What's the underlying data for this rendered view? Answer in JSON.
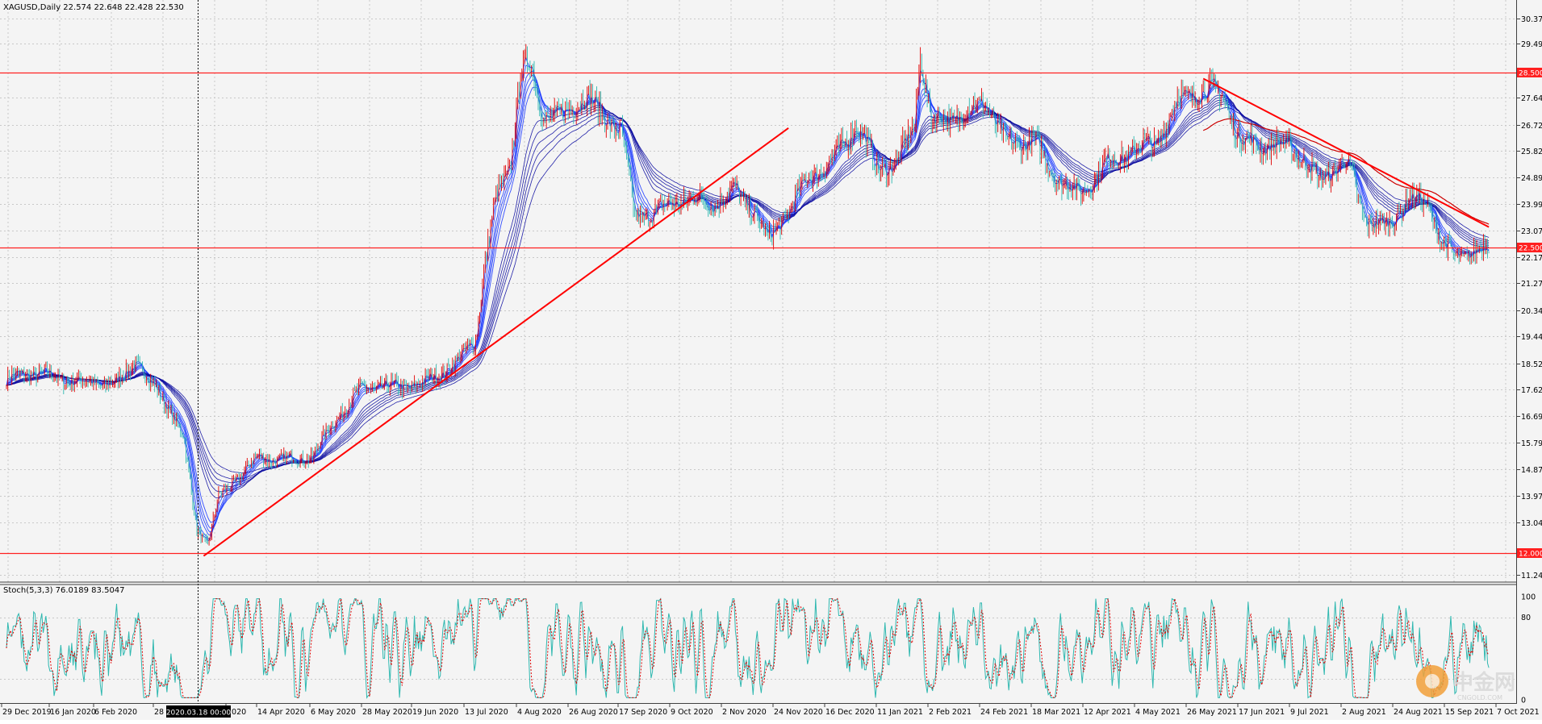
{
  "chart_data": {
    "type": "line",
    "symbol_info": "XAGUSD,Daily  22.574 22.648 22.428 22.530",
    "price_axis": {
      "ylim": [
        11.0,
        31.0
      ],
      "ticks": [
        "30.370",
        "29.495",
        "28.500",
        "27.645",
        "26.720",
        "25.820",
        "24.895",
        "23.995",
        "23.070",
        "22.500",
        "22.170",
        "21.270",
        "20.345",
        "19.445",
        "18.520",
        "17.620",
        "16.695",
        "15.795",
        "14.870",
        "13.970",
        "13.045",
        "12.000",
        "11.245"
      ],
      "highlighted_levels": [
        "28.500",
        "22.500",
        "12.000"
      ]
    },
    "horizontal_levels": [
      28.5,
      22.5,
      12.0
    ],
    "trendlines": [
      {
        "from": {
          "bar": 145,
          "price": 11.9
        },
        "to": {
          "bar": 575,
          "price": 26.6
        }
      },
      {
        "from": {
          "bar": 880,
          "price": 28.3
        },
        "to": {
          "bar": 1090,
          "price": 23.2
        }
      }
    ],
    "price_path": [
      {
        "bar": 0,
        "price": 18.0
      },
      {
        "bar": 20,
        "price": 18.2
      },
      {
        "bar": 50,
        "price": 17.9
      },
      {
        "bar": 80,
        "price": 17.8
      },
      {
        "bar": 95,
        "price": 18.6
      },
      {
        "bar": 105,
        "price": 17.9
      },
      {
        "bar": 118,
        "price": 17.1
      },
      {
        "bar": 130,
        "price": 16.0
      },
      {
        "bar": 140,
        "price": 12.8
      },
      {
        "bar": 148,
        "price": 12.3
      },
      {
        "bar": 156,
        "price": 13.9
      },
      {
        "bar": 170,
        "price": 14.6
      },
      {
        "bar": 185,
        "price": 15.3
      },
      {
        "bar": 205,
        "price": 15.2
      },
      {
        "bar": 225,
        "price": 15.3
      },
      {
        "bar": 240,
        "price": 16.5
      },
      {
        "bar": 262,
        "price": 17.7
      },
      {
        "bar": 285,
        "price": 17.7
      },
      {
        "bar": 305,
        "price": 17.8
      },
      {
        "bar": 330,
        "price": 18.5
      },
      {
        "bar": 345,
        "price": 19.4
      },
      {
        "bar": 352,
        "price": 22.0
      },
      {
        "bar": 360,
        "price": 24.2
      },
      {
        "bar": 370,
        "price": 25.3
      },
      {
        "bar": 378,
        "price": 28.5
      },
      {
        "bar": 385,
        "price": 28.8
      },
      {
        "bar": 395,
        "price": 27.0
      },
      {
        "bar": 410,
        "price": 27.0
      },
      {
        "bar": 425,
        "price": 27.8
      },
      {
        "bar": 440,
        "price": 26.9
      },
      {
        "bar": 452,
        "price": 26.6
      },
      {
        "bar": 462,
        "price": 23.5
      },
      {
        "bar": 480,
        "price": 23.8
      },
      {
        "bar": 500,
        "price": 24.2
      },
      {
        "bar": 520,
        "price": 24.0
      },
      {
        "bar": 535,
        "price": 24.5
      },
      {
        "bar": 550,
        "price": 23.7
      },
      {
        "bar": 560,
        "price": 22.7
      },
      {
        "bar": 575,
        "price": 23.8
      },
      {
        "bar": 590,
        "price": 24.9
      },
      {
        "bar": 610,
        "price": 25.6
      },
      {
        "bar": 625,
        "price": 26.8
      },
      {
        "bar": 640,
        "price": 25.2
      },
      {
        "bar": 655,
        "price": 25.4
      },
      {
        "bar": 668,
        "price": 26.8
      },
      {
        "bar": 672,
        "price": 29.2
      },
      {
        "bar": 680,
        "price": 26.8
      },
      {
        "bar": 700,
        "price": 27.0
      },
      {
        "bar": 720,
        "price": 27.5
      },
      {
        "bar": 735,
        "price": 26.0
      },
      {
        "bar": 755,
        "price": 26.2
      },
      {
        "bar": 770,
        "price": 25.0
      },
      {
        "bar": 790,
        "price": 24.3
      },
      {
        "bar": 805,
        "price": 25.3
      },
      {
        "bar": 825,
        "price": 25.8
      },
      {
        "bar": 845,
        "price": 26.1
      },
      {
        "bar": 862,
        "price": 27.6
      },
      {
        "bar": 880,
        "price": 27.9
      },
      {
        "bar": 895,
        "price": 27.8
      },
      {
        "bar": 905,
        "price": 26.2
      },
      {
        "bar": 925,
        "price": 26.0
      },
      {
        "bar": 945,
        "price": 26.0
      },
      {
        "bar": 965,
        "price": 24.8
      },
      {
        "bar": 985,
        "price": 25.5
      },
      {
        "bar": 1000,
        "price": 23.4
      },
      {
        "bar": 1015,
        "price": 23.2
      },
      {
        "bar": 1030,
        "price": 24.2
      },
      {
        "bar": 1045,
        "price": 24.0
      },
      {
        "bar": 1055,
        "price": 22.7
      },
      {
        "bar": 1065,
        "price": 22.1
      },
      {
        "bar": 1080,
        "price": 22.4
      },
      {
        "bar": 1090,
        "price": 22.5
      }
    ],
    "moving_average_ribbon": {
      "color": "#0a14c8",
      "line_count": 12
    },
    "stochastic": {
      "label": "Stoch(5,3,3) 76.0189 83.5047",
      "main_value": 76.0189,
      "signal_value": 83.5047,
      "ylim": [
        0,
        100
      ],
      "ticks": [
        "100",
        "80",
        "0"
      ],
      "main_color": "#2fb8b0",
      "signal_color": "#e00000"
    },
    "time_axis": {
      "labels": [
        "29 Dec 2019",
        "16 Jan 2020",
        "6 Feb 2020",
        "28",
        "2020.03.18 00:00",
        "2020",
        "14 Apr 2020",
        "6 May 2020",
        "28 May 2020",
        "19 Jun 2020",
        "13 Jul 2020",
        "4 Aug 2020",
        "26 Aug 2020",
        "17 Sep 2020",
        "9 Oct 2020",
        "2 Nov 2020",
        "24 Nov 2020",
        "16 Dec 2020",
        "11 Jan 2021",
        "2 Feb 2021",
        "24 Feb 2021",
        "18 Mar 2021",
        "12 Apr 2021",
        "4 May 2021",
        "26 May 2021",
        "17 Jun 2021",
        "9 Jul 2021",
        "2 Aug 2021",
        "24 Aug 2021",
        "15 Sep 2021",
        "7 Oct 2021"
      ],
      "crosshair_label": "2020.03.18 00:00"
    },
    "colors": {
      "bull": "#e00000",
      "bear": "#2fb8b0",
      "level_line": "#ff2020",
      "trendline": "#ff0000",
      "badge": "#ff2020"
    }
  },
  "watermark": {
    "text": "中金网",
    "sub": "CNGOLD.COM"
  }
}
